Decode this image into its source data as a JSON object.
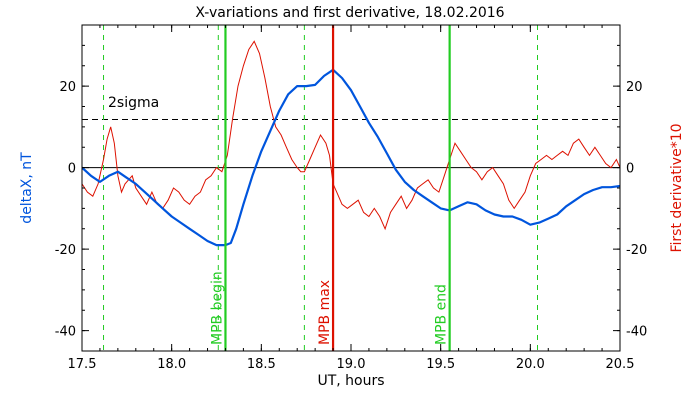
{
  "chart_data": {
    "type": "line",
    "title": "X-variations and first derivative, 18.02.2016",
    "xlabel": "UT, hours",
    "ylabel_left": "deltaX, nT",
    "ylabel_right": "First derivative*10",
    "xlim": [
      17.5,
      20.5
    ],
    "ylim": [
      -45,
      35
    ],
    "x_ticks": [
      "17.5",
      "18.0",
      "18.5",
      "19.0",
      "19.5",
      "20.0",
      "20.5"
    ],
    "y_ticks": [
      "-40",
      "-20",
      "0",
      "20"
    ],
    "grid": false,
    "colors": {
      "deltaX": "#0055dd",
      "derivative": "#dd1100",
      "mpb_lines": "#22cc22",
      "max_line": "#dd1100",
      "axis": "#000000"
    },
    "threshold": {
      "label": "2sigma",
      "y": 11.8
    },
    "markers": [
      {
        "label": "MPB begin",
        "x": 18.3
      },
      {
        "label": "MPB max",
        "x": 18.9
      },
      {
        "label": "MPB end",
        "x": 19.55
      }
    ],
    "secondary_markers_x": [
      17.62,
      18.26,
      18.74,
      20.04
    ],
    "series": [
      {
        "key": "deltaX",
        "x": [
          17.5,
          17.55,
          17.6,
          17.65,
          17.7,
          17.75,
          17.8,
          17.85,
          17.9,
          17.95,
          18.0,
          18.05,
          18.1,
          18.15,
          18.2,
          18.25,
          18.3,
          18.33,
          18.36,
          18.4,
          18.45,
          18.5,
          18.55,
          18.6,
          18.65,
          18.7,
          18.75,
          18.8,
          18.85,
          18.9,
          18.95,
          19.0,
          19.05,
          19.1,
          19.15,
          19.2,
          19.25,
          19.3,
          19.35,
          19.4,
          19.45,
          19.5,
          19.55,
          19.6,
          19.65,
          19.7,
          19.75,
          19.8,
          19.85,
          19.9,
          19.95,
          20.0,
          20.05,
          20.1,
          20.15,
          20.2,
          20.25,
          20.3,
          20.35,
          20.4,
          20.45,
          20.5
        ],
        "values": [
          0,
          -2,
          -3.5,
          -2,
          -1,
          -2.5,
          -4,
          -6,
          -8,
          -10,
          -12,
          -13.5,
          -15,
          -16.5,
          -18,
          -19,
          -19,
          -18.5,
          -15,
          -9,
          -2,
          4,
          9,
          14,
          18,
          20,
          20,
          20.3,
          22.5,
          24,
          22,
          19,
          15,
          11,
          7.5,
          3.5,
          -0.5,
          -3.5,
          -5.5,
          -7,
          -8.5,
          -10,
          -10.5,
          -9.5,
          -8.5,
          -9,
          -10.5,
          -11.5,
          -12,
          -12,
          -12.8,
          -14,
          -13.5,
          -12.5,
          -11.5,
          -9.5,
          -8,
          -6.5,
          -5.5,
          -4.8,
          -4.8,
          -4.5
        ]
      },
      {
        "key": "derivative",
        "x": [
          17.5,
          17.53,
          17.56,
          17.59,
          17.62,
          17.64,
          17.66,
          17.68,
          17.7,
          17.72,
          17.74,
          17.76,
          17.78,
          17.8,
          17.83,
          17.86,
          17.89,
          17.92,
          17.95,
          17.98,
          18.01,
          18.04,
          18.07,
          18.1,
          18.13,
          18.16,
          18.19,
          18.22,
          18.25,
          18.28,
          18.31,
          18.34,
          18.37,
          18.4,
          18.43,
          18.46,
          18.49,
          18.52,
          18.55,
          18.58,
          18.61,
          18.64,
          18.67,
          18.7,
          18.72,
          18.74,
          18.77,
          18.8,
          18.83,
          18.86,
          18.88,
          18.9,
          18.92,
          18.95,
          18.98,
          19.01,
          19.04,
          19.07,
          19.1,
          19.13,
          19.16,
          19.19,
          19.22,
          19.25,
          19.28,
          19.31,
          19.34,
          19.37,
          19.4,
          19.43,
          19.46,
          19.49,
          19.52,
          19.55,
          19.58,
          19.61,
          19.64,
          19.67,
          19.7,
          19.73,
          19.76,
          19.79,
          19.82,
          19.85,
          19.88,
          19.91,
          19.94,
          19.97,
          20.0,
          20.03,
          20.06,
          20.09,
          20.12,
          20.15,
          20.18,
          20.21,
          20.24,
          20.27,
          20.3,
          20.33,
          20.36,
          20.39,
          20.42,
          20.45,
          20.48,
          20.5
        ],
        "values": [
          -4,
          -6,
          -7,
          -4,
          2,
          7,
          10,
          6,
          -2,
          -6,
          -4,
          -3,
          -2,
          -5,
          -7,
          -9,
          -6,
          -9,
          -10,
          -8,
          -5,
          -6,
          -8,
          -9,
          -7,
          -6,
          -3,
          -2,
          0,
          -1,
          3,
          12,
          20,
          25,
          29,
          31,
          28,
          22,
          15,
          10,
          8,
          5,
          2,
          0,
          -1,
          -1,
          2,
          5,
          8,
          6,
          3,
          -4,
          -6,
          -9,
          -10,
          -9,
          -8,
          -11,
          -12,
          -10,
          -12,
          -15,
          -11,
          -9,
          -7,
          -10,
          -8,
          -5,
          -4,
          -3,
          -5,
          -6,
          -2,
          2,
          6,
          4,
          2,
          0,
          -1,
          -3,
          -1,
          0,
          -2,
          -4,
          -8,
          -10,
          -8,
          -6,
          -2,
          1,
          2,
          3,
          2,
          3,
          4,
          3,
          6,
          7,
          5,
          3,
          5,
          3,
          1,
          0,
          2,
          0
        ]
      }
    ]
  }
}
